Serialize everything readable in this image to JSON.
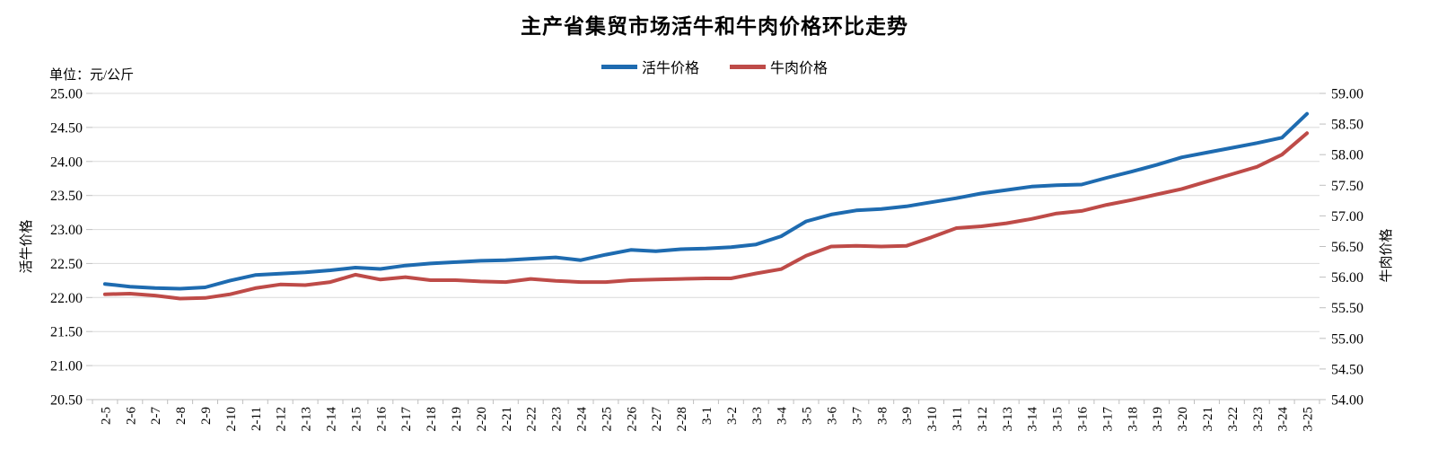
{
  "chart_data": {
    "type": "line",
    "title": "主产省集贸市场活牛和牛肉价格环比走势",
    "unit_label": "单位：元/公斤",
    "legend_position": "top",
    "grid": true,
    "background": "#ffffff",
    "gridline_color": "#d9d9d9",
    "axis_color": "#bfbfbf",
    "categories": [
      "2-5",
      "2-6",
      "2-7",
      "2-8",
      "2-9",
      "2-10",
      "2-11",
      "2-12",
      "2-13",
      "2-14",
      "2-15",
      "2-16",
      "2-17",
      "2-18",
      "2-19",
      "2-20",
      "2-21",
      "2-22",
      "2-23",
      "2-24",
      "2-25",
      "2-26",
      "2-27",
      "2-28",
      "3-1",
      "3-2",
      "3-3",
      "3-4",
      "3-5",
      "3-6",
      "3-7",
      "3-8",
      "3-9",
      "3-10",
      "3-11",
      "3-12",
      "3-13",
      "3-14",
      "3-15",
      "3-16",
      "3-17",
      "3-18",
      "3-19",
      "3-20",
      "3-21",
      "3-22",
      "3-23",
      "3-24",
      "3-25"
    ],
    "series": [
      {
        "name": "活牛价格",
        "axis": "left",
        "color": "#1e6bb0",
        "values": [
          22.2,
          22.16,
          22.14,
          22.13,
          22.15,
          22.25,
          22.33,
          22.35,
          22.37,
          22.4,
          22.44,
          22.42,
          22.47,
          22.5,
          22.52,
          22.54,
          22.55,
          22.57,
          22.59,
          22.55,
          22.63,
          22.7,
          22.68,
          22.71,
          22.72,
          22.74,
          22.78,
          22.9,
          23.12,
          23.22,
          23.28,
          23.3,
          23.34,
          23.4,
          23.46,
          23.53,
          23.58,
          23.63,
          23.65,
          23.66,
          23.76,
          23.85,
          23.95,
          24.06,
          24.13,
          24.2,
          24.27,
          24.35,
          24.7
        ]
      },
      {
        "name": "牛肉价格",
        "axis": "right",
        "color": "#be4b48",
        "values": [
          55.72,
          55.73,
          55.7,
          55.65,
          55.66,
          55.72,
          55.82,
          55.88,
          55.87,
          55.92,
          56.04,
          55.96,
          56.0,
          55.95,
          55.95,
          55.93,
          55.92,
          55.97,
          55.94,
          55.92,
          55.92,
          55.95,
          55.96,
          55.97,
          55.98,
          55.98,
          56.06,
          56.13,
          56.35,
          56.5,
          56.51,
          56.5,
          56.51,
          56.65,
          56.8,
          56.83,
          56.88,
          56.95,
          57.04,
          57.08,
          57.18,
          57.26,
          57.35,
          57.44,
          57.56,
          57.68,
          57.8,
          58.0,
          58.35
        ]
      }
    ],
    "left_axis": {
      "title": "活牛价格",
      "min": 20.5,
      "max": 25.0,
      "step": 0.5,
      "tick_labels": [
        "25.00",
        "24.50",
        "24.00",
        "23.50",
        "23.00",
        "22.50",
        "22.00",
        "21.50",
        "21.00",
        "20.50"
      ]
    },
    "right_axis": {
      "title": "牛肉价格",
      "min": 54.0,
      "max": 59.0,
      "step": 0.5,
      "tick_labels": [
        "59.00",
        "58.50",
        "58.00",
        "57.50",
        "57.00",
        "56.50",
        "56.00",
        "55.50",
        "55.00",
        "54.50",
        "54.00"
      ]
    }
  }
}
